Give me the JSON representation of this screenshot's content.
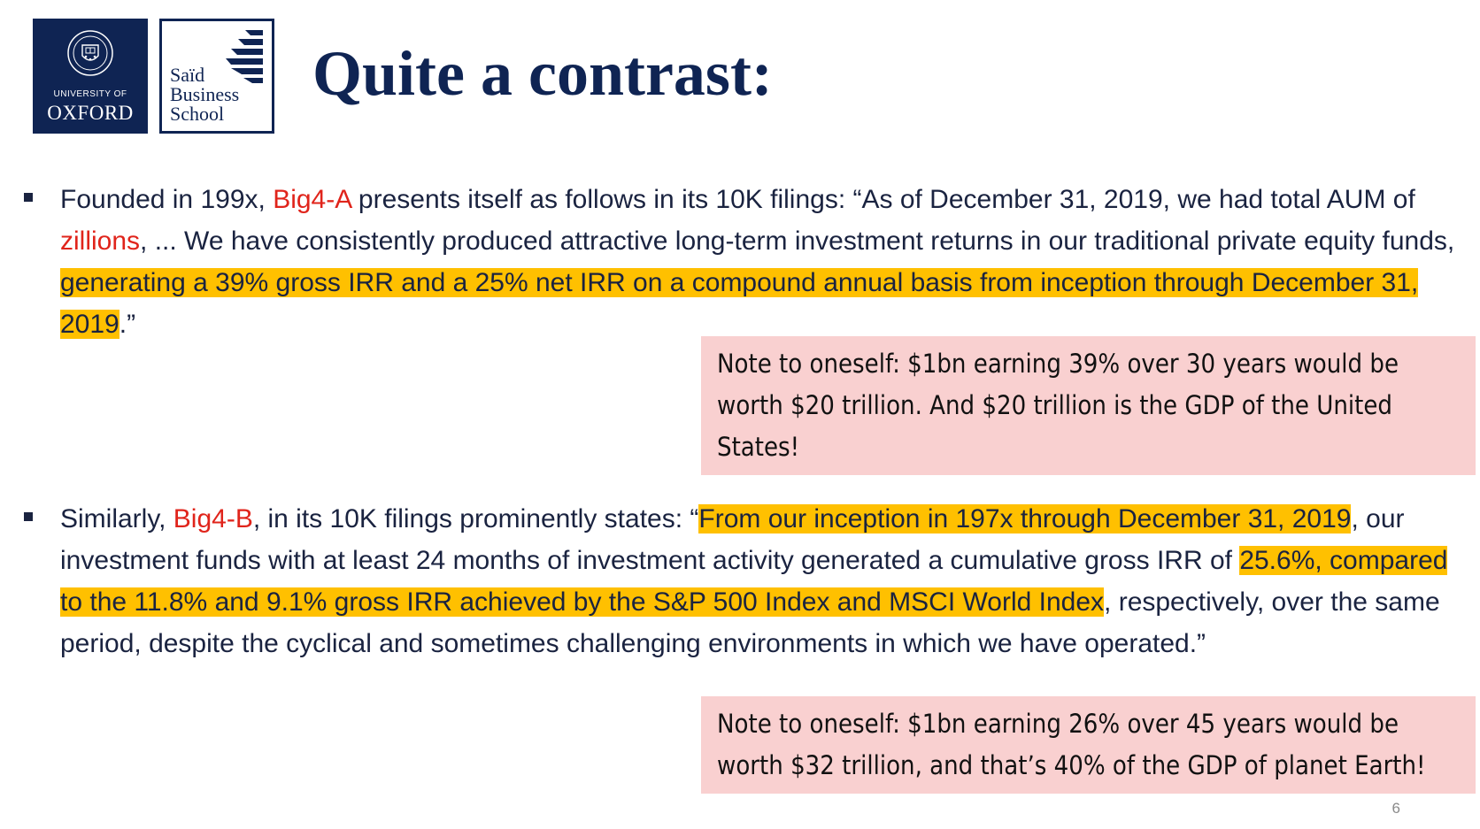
{
  "logos": {
    "oxford": {
      "line1": "UNIVERSITY OF",
      "line2": "OXFORD",
      "crest_text": "UNIVERSITY OF OXFORD"
    },
    "sbs": {
      "text": "Saïd\nBusiness\nSchool"
    }
  },
  "title": "Quite a contrast:",
  "bullets": [
    {
      "segments": [
        {
          "text": "Founded in 199x, ",
          "style": "normal"
        },
        {
          "text": "Big4-A",
          "style": "red"
        },
        {
          "text": " presents itself as follows in its 10K filings: “As of December 31, 2019, we had total AUM of ",
          "style": "normal"
        },
        {
          "text": "zillions",
          "style": "red"
        },
        {
          "text": ", ... We have consistently produced attractive long-term investment returns in our traditional private equity funds, ",
          "style": "normal"
        },
        {
          "text": "generating a 39% gross IRR and a 25% net IRR on a compound annual basis from inception through December 31, 2019",
          "style": "highlight"
        },
        {
          "text": ".”",
          "style": "normal"
        }
      ],
      "note": "Note to oneself: $1bn earning 39% over 30 years would be worth $20 trillion. And $20 trillion is the GDP of the United States!"
    },
    {
      "segments": [
        {
          "text": "Similarly, ",
          "style": "normal"
        },
        {
          "text": "Big4-B",
          "style": "red"
        },
        {
          "text": ", in its 10K filings prominently states: “",
          "style": "normal"
        },
        {
          "text": "From our inception in 197x through December 31, 2019",
          "style": "highlight"
        },
        {
          "text": ", our investment funds with at least 24 months of investment activity generated a cumulative gross IRR of ",
          "style": "normal"
        },
        {
          "text": "25.6%, compared to the 11.8% and 9.1% gross IRR achieved by the S&P 500 Index and MSCI World Index",
          "style": "highlight"
        },
        {
          "text": ", respectively, over the same period, despite the cyclical and sometimes challenging environments in which we have operated.”",
          "style": "normal"
        }
      ],
      "note": "Note to oneself: $1bn earning 26% over 45 years would be worth $32 trillion, and that’s 40% of the GDP of planet Earth!"
    }
  ],
  "page_number": "6",
  "colors": {
    "navy": "#0f2453",
    "red_text": "#e0241b",
    "highlight": "#ffc000",
    "note_background": "#f9d0d0"
  }
}
